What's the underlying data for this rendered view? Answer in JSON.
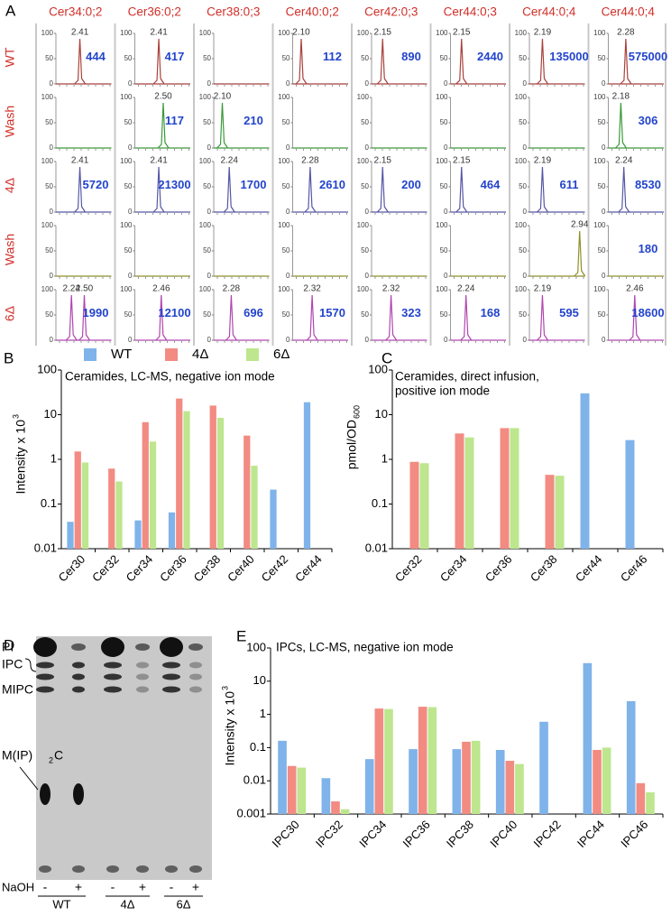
{
  "panel_a": {
    "label": "A",
    "columns": [
      "Cer34:0;2",
      "Cer36:0;2",
      "Cer38:0;3",
      "Cer40:0;2",
      "Cer42:0;3",
      "Cer44:0;3",
      "Cer44:0;4",
      "Cer44:0;4"
    ],
    "yticks": [
      0,
      50,
      100
    ],
    "rows": [
      {
        "label": "WT",
        "color": "#a8423c",
        "cells": [
          {
            "rt": [
              "2.41"
            ],
            "intensity": 444
          },
          {
            "rt": [
              "2.41"
            ],
            "intensity": 417
          },
          null,
          {
            "rt": [
              "2.10"
            ],
            "intensity": 112
          },
          {
            "rt": [
              "2.15"
            ],
            "intensity": 890
          },
          {
            "rt": [
              "2.15"
            ],
            "intensity": 2440
          },
          {
            "rt": [
              "2.19"
            ],
            "intensity": 135000
          },
          {
            "rt": [
              "2.28"
            ],
            "intensity": 575000
          }
        ]
      },
      {
        "label": "Wash",
        "color": "#3a9a3a",
        "cells": [
          null,
          {
            "rt": [
              "2.50"
            ],
            "intensity": 117
          },
          {
            "rt": [
              "2.10"
            ],
            "intensity": 210
          },
          null,
          null,
          null,
          null,
          {
            "rt": [
              "2.18"
            ],
            "intensity": 306
          }
        ]
      },
      {
        "label": "4Δ",
        "color": "#5656a6",
        "cells": [
          {
            "rt": [
              "2.41"
            ],
            "intensity": 5720
          },
          {
            "rt": [
              "2.41"
            ],
            "intensity": 21300
          },
          {
            "rt": [
              "2.24"
            ],
            "intensity": 1700
          },
          {
            "rt": [
              "2.28"
            ],
            "intensity": 2610
          },
          {
            "rt": [
              "2.15"
            ],
            "intensity": 200
          },
          {
            "rt": [
              "2.15"
            ],
            "intensity": 464
          },
          {
            "rt": [
              "2.19"
            ],
            "intensity": 611
          },
          {
            "rt": [
              "2.24"
            ],
            "intensity": 8530
          }
        ]
      },
      {
        "label": "Wash",
        "color": "#8f8f2a",
        "cells": [
          null,
          null,
          null,
          null,
          null,
          null,
          {
            "rt": [
              "2.94"
            ]
          },
          {
            "rt": [],
            "intensity": 180
          }
        ]
      },
      {
        "label": "6Δ",
        "color": "#b046b0",
        "cells": [
          {
            "rt": [
              "2.24",
              "2.50"
            ],
            "intensity": 1990
          },
          {
            "rt": [
              "2.46"
            ],
            "intensity": 12100
          },
          {
            "rt": [
              "2.28"
            ],
            "intensity": 696
          },
          {
            "rt": [
              "2.32"
            ],
            "intensity": 1570
          },
          {
            "rt": [
              "2.32"
            ],
            "intensity": 323
          },
          {
            "rt": [
              "2.24"
            ],
            "intensity": 168
          },
          {
            "rt": [
              "2.19"
            ],
            "intensity": 595
          },
          {
            "rt": [
              "2.46"
            ],
            "intensity": 18600
          }
        ]
      }
    ]
  },
  "chart_data": [
    {
      "type": "bar",
      "label": "B",
      "log_scale": true,
      "annotation": [
        "Ceramides, LC-MS, negative ion mode"
      ],
      "y_label": {
        "text": "Intensity x 10",
        "sup": "3"
      },
      "categories": [
        "Cer30",
        "Cer32",
        "Cer34",
        "Cer36",
        "Cer38",
        "Cer40",
        "Cer42",
        "Cer44"
      ],
      "series": [
        {
          "name": "WT",
          "color": "#7fb3ea",
          "values": [
            0.04,
            null,
            0.043,
            0.065,
            null,
            null,
            0.21,
            19
          ]
        },
        {
          "name": "4Δ",
          "color": "#f28b82",
          "values": [
            1.5,
            0.62,
            6.8,
            23,
            16,
            3.4,
            null,
            null
          ]
        },
        {
          "name": "6Δ",
          "color": "#bde68e",
          "values": [
            0.85,
            0.32,
            2.5,
            12,
            8.5,
            0.72,
            null,
            null
          ]
        }
      ],
      "ylim": [
        0.01,
        100
      ],
      "yticks": [
        0.01,
        0.1,
        1,
        10,
        100
      ]
    },
    {
      "type": "bar",
      "label": "C",
      "log_scale": true,
      "annotation": [
        "Ceramides, direct infusion,",
        "positive ion mode"
      ],
      "y_label": {
        "text": "pmol/OD",
        "sub": "600"
      },
      "categories": [
        "Cer32",
        "Cer34",
        "Cer36",
        "Cer38",
        "Cer44",
        "Cer46"
      ],
      "series": [
        {
          "color": "#7fb3ea",
          "values": [
            null,
            null,
            null,
            null,
            30,
            2.7
          ]
        },
        {
          "color": "#f28b82",
          "values": [
            0.88,
            3.8,
            5,
            0.45,
            null,
            null
          ]
        },
        {
          "color": "#bde68e",
          "values": [
            0.82,
            3.1,
            5,
            0.43,
            null,
            null
          ]
        }
      ],
      "ylim": [
        0.01,
        100
      ],
      "yticks": [
        0.01,
        0.1,
        1,
        10,
        100
      ]
    },
    {
      "type": "bar",
      "label": "E",
      "log_scale": true,
      "annotation": [
        "IPCs, LC-MS, negative ion mode"
      ],
      "y_label": {
        "text": "Intensity x 10",
        "sup": "3"
      },
      "categories": [
        "IPC30",
        "IPC32",
        "IPC34",
        "IPC36",
        "IPC38",
        "IPC40",
        "IPC42",
        "IPC44",
        "IPC46"
      ],
      "series": [
        {
          "color": "#7fb3ea",
          "values": [
            0.16,
            0.012,
            0.045,
            0.09,
            0.09,
            0.085,
            0.6,
            35,
            2.5
          ]
        },
        {
          "color": "#f28b82",
          "values": [
            0.028,
            0.0024,
            1.5,
            1.7,
            0.15,
            0.04,
            null,
            0.085,
            0.0085
          ]
        },
        {
          "color": "#bde68e",
          "values": [
            0.025,
            0.0014,
            1.45,
            1.65,
            0.16,
            0.032,
            null,
            0.1,
            0.0045
          ]
        }
      ],
      "ylim": [
        0.001,
        100
      ],
      "yticks": [
        0.001,
        0.01,
        0.1,
        1,
        10,
        100
      ]
    }
  ],
  "panel_d": {
    "label": "D",
    "bands": [
      "PI",
      "IPC",
      "MIPC",
      "M(IP)",
      "2",
      "C"
    ],
    "treatment": "NaOH",
    "lanes": [
      "-",
      "+",
      "-",
      "+",
      "-",
      "+"
    ],
    "groups": [
      "WT",
      "4Δ",
      "6Δ"
    ]
  }
}
